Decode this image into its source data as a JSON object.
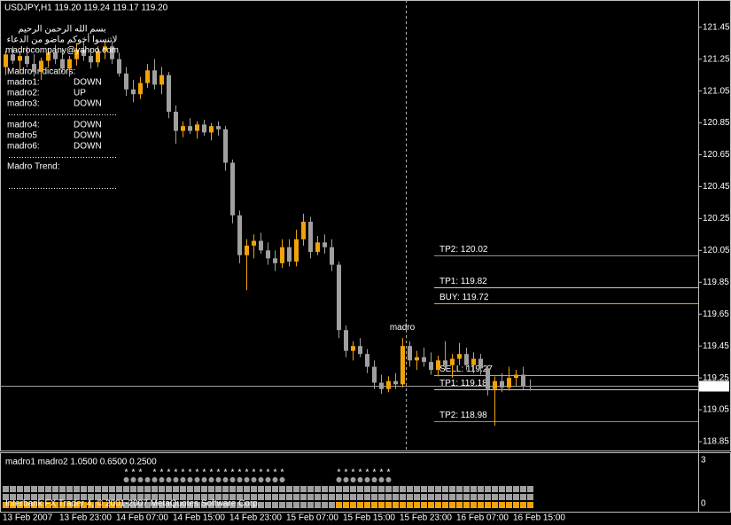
{
  "chart_data": {
    "type": "candlestick",
    "title": "USDJPY,H1  119.20 119.24 119.17 119.20",
    "up_color": "#f0a30a",
    "down_color": "#a0a0a0",
    "categories": [
      "13 Feb 2007",
      null,
      null,
      null,
      null,
      null,
      null,
      null,
      "13 Feb 23:00",
      null,
      null,
      null,
      null,
      null,
      null,
      null,
      "14 Feb 07:00",
      null,
      null,
      null,
      null,
      null,
      null,
      null,
      "14 Feb 15:00",
      null,
      null,
      null,
      null,
      null,
      null,
      null,
      "14 Feb 23:00",
      null,
      null,
      null,
      null,
      null,
      null,
      null,
      "15 Feb 07:00",
      null,
      null,
      null,
      null,
      null,
      null,
      null,
      "15 Feb 15:00",
      null,
      null,
      null,
      null,
      null,
      null,
      null,
      "15 Feb 23:00",
      null,
      null,
      null,
      null,
      null,
      null,
      null,
      "16 Feb 07:00",
      null,
      null,
      null,
      null,
      null,
      null,
      null,
      "16 Feb 15:00",
      null,
      null
    ],
    "open": [
      121.2,
      121.28,
      121.24,
      121.27,
      121.22,
      121.17,
      121.24,
      121.29,
      121.25,
      121.19,
      121.25,
      121.31,
      121.27,
      121.23,
      121.3,
      121.33,
      121.25,
      121.16,
      121.06,
      121.03,
      121.1,
      121.18,
      121.09,
      121.15,
      120.92,
      120.8,
      120.83,
      120.8,
      120.84,
      120.79,
      120.83,
      120.81,
      120.6,
      120.27,
      120.02,
      120.08,
      120.11,
      120.05,
      120.0,
      119.97,
      120.07,
      119.98,
      120.12,
      120.23,
      120.04,
      120.1,
      120.07,
      119.96,
      119.55,
      119.42,
      119.45,
      119.4,
      119.32,
      119.22,
      119.18,
      119.23,
      119.21,
      119.45,
      119.36,
      119.38,
      119.35,
      119.3,
      119.36,
      119.33,
      119.37,
      119.4,
      119.33,
      119.37,
      119.31,
      119.18,
      119.23,
      119.19,
      119.25,
      119.27,
      119.2
    ],
    "high": [
      121.3,
      121.33,
      121.3,
      121.33,
      121.28,
      121.26,
      121.32,
      121.34,
      121.31,
      121.27,
      121.35,
      121.36,
      121.32,
      121.33,
      121.36,
      121.36,
      121.29,
      121.2,
      121.12,
      121.14,
      121.22,
      121.25,
      121.2,
      121.17,
      120.96,
      120.86,
      120.88,
      120.86,
      120.87,
      120.85,
      120.86,
      120.83,
      120.62,
      120.3,
      120.12,
      120.15,
      120.16,
      120.1,
      120.05,
      120.12,
      120.12,
      120.18,
      120.28,
      120.26,
      120.14,
      120.15,
      120.12,
      119.98,
      119.58,
      119.48,
      119.5,
      119.43,
      119.36,
      119.27,
      119.26,
      119.28,
      119.5,
      119.48,
      119.42,
      119.44,
      119.41,
      119.39,
      119.48,
      119.4,
      119.47,
      119.44,
      119.41,
      119.4,
      119.33,
      119.26,
      119.28,
      119.32,
      119.3,
      119.32,
      119.24
    ],
    "low": [
      121.15,
      121.22,
      121.18,
      121.2,
      121.14,
      121.12,
      121.2,
      121.22,
      121.17,
      121.14,
      121.21,
      121.24,
      121.19,
      121.2,
      121.25,
      121.22,
      121.14,
      121.02,
      120.98,
      121.0,
      121.07,
      121.06,
      121.03,
      120.88,
      120.72,
      120.76,
      120.78,
      120.75,
      120.77,
      120.74,
      120.77,
      120.55,
      120.22,
      119.97,
      119.8,
      120.0,
      120.03,
      119.96,
      119.92,
      119.94,
      119.95,
      119.95,
      120.08,
      120.0,
      120.02,
      120.03,
      119.92,
      119.5,
      119.38,
      119.36,
      119.38,
      119.28,
      119.18,
      119.15,
      119.16,
      119.18,
      119.19,
      119.32,
      119.3,
      119.32,
      119.27,
      119.26,
      119.3,
      119.25,
      119.33,
      119.3,
      119.28,
      119.27,
      119.14,
      118.95,
      119.16,
      119.17,
      119.2,
      119.18,
      119.17
    ],
    "close": [
      121.28,
      121.24,
      121.27,
      121.22,
      121.17,
      121.24,
      121.29,
      121.25,
      121.19,
      121.25,
      121.31,
      121.27,
      121.23,
      121.3,
      121.33,
      121.25,
      121.16,
      121.06,
      121.03,
      121.1,
      121.18,
      121.09,
      121.15,
      120.92,
      120.8,
      120.83,
      120.8,
      120.84,
      120.79,
      120.83,
      120.81,
      120.6,
      120.27,
      120.02,
      120.08,
      120.11,
      120.05,
      120.0,
      119.97,
      120.07,
      119.98,
      120.12,
      120.23,
      120.04,
      120.1,
      120.07,
      119.96,
      119.55,
      119.42,
      119.45,
      119.4,
      119.32,
      119.22,
      119.18,
      119.23,
      119.21,
      119.45,
      119.36,
      119.38,
      119.35,
      119.3,
      119.36,
      119.33,
      119.37,
      119.4,
      119.33,
      119.37,
      119.31,
      119.18,
      119.23,
      119.19,
      119.25,
      119.27,
      119.2,
      119.2
    ],
    "ylim": [
      118.8,
      121.61
    ],
    "yticks": [
      121.45,
      121.25,
      121.05,
      120.85,
      120.65,
      120.45,
      120.25,
      120.05,
      119.85,
      119.65,
      119.45,
      119.25,
      119.05,
      118.85
    ],
    "price_line": {
      "value": 119.2,
      "label": "119.20",
      "color": "#a0a0a0"
    },
    "levels": [
      {
        "label": "TP2: 120.02",
        "value": 120.02,
        "color": "#909090"
      },
      {
        "label": "TP1: 119.82",
        "value": 119.82,
        "color": "#c8c8c8"
      },
      {
        "label": "BUY: 119.72",
        "value": 119.72,
        "color": "#f0a30a"
      },
      {
        "label": "SELL: 119.27",
        "value": 119.27,
        "color": "#f0a30a"
      },
      {
        "label": "TP1: 119.18",
        "value": 119.18,
        "color": "#c8c8c8"
      },
      {
        "label": "TP2: 118.98",
        "value": 118.98,
        "color": "#909090"
      }
    ],
    "annotation": {
      "text": "madro",
      "category": "15 Feb 23:00",
      "color": "#f0a30a"
    },
    "info": {
      "lines": [
        "بسم الله الرحمن الرحيم",
        "لاتنسوا أخوكم ماضو من الدعاء",
        "madrocompany@yahoo.com"
      ],
      "heading": "Madro Indicators:",
      "signals": [
        {
          "label": "madro1:",
          "status": "DOWN",
          "color": "#ff2020"
        },
        {
          "label": "madro2:",
          "status": "UP",
          "color": "#20c020"
        },
        {
          "label": "madro3:",
          "status": "DOWN",
          "color": "#ff2020"
        },
        {
          "label": "madro4:",
          "status": "DOWN",
          "color": "#ff2020"
        },
        {
          "label": "madro5",
          "status": "DOWN",
          "color": "#ff2020"
        },
        {
          "label": "madro6:",
          "status": "DOWN",
          "color": "#ff2020"
        }
      ],
      "trend": "Madro Trend:"
    },
    "indicator": {
      "label": "madro1  madro2 1.0500 0.6500 0.2500",
      "ylim": [
        0,
        3
      ],
      "yticks": [
        0,
        3
      ],
      "rows": [
        {
          "marker": "*",
          "color": "#e0e0e0",
          "values": [
            null,
            null,
            null,
            null,
            null,
            null,
            null,
            null,
            null,
            null,
            null,
            null,
            null,
            null,
            null,
            null,
            null,
            1,
            1,
            1,
            null,
            1,
            1,
            1,
            1,
            1,
            1,
            1,
            1,
            1,
            1,
            1,
            1,
            1,
            1,
            1,
            1,
            1,
            1,
            1,
            null,
            null,
            null,
            null,
            null,
            null,
            null,
            1,
            1,
            1,
            1,
            1,
            1,
            1,
            1,
            null,
            null,
            null,
            null,
            null,
            null,
            null,
            null,
            null,
            null,
            null,
            null,
            null,
            null,
            null,
            null,
            null,
            null,
            null,
            null
          ]
        },
        {
          "marker": "dot",
          "color": "#a0a0a0",
          "values": [
            null,
            null,
            null,
            null,
            null,
            null,
            null,
            null,
            null,
            null,
            null,
            null,
            null,
            null,
            null,
            null,
            null,
            1,
            1,
            1,
            1,
            1,
            1,
            1,
            1,
            1,
            1,
            1,
            1,
            1,
            1,
            1,
            1,
            1,
            1,
            1,
            1,
            1,
            1,
            1,
            null,
            null,
            null,
            null,
            null,
            null,
            null,
            1,
            1,
            1,
            1,
            1,
            1,
            1,
            1,
            null,
            null,
            null,
            null,
            null,
            null,
            null,
            null,
            null,
            null,
            null,
            null,
            null,
            null,
            null,
            null,
            null,
            null,
            null,
            null
          ]
        },
        {
          "marker": "square",
          "values": [
            0,
            0,
            0,
            0,
            0,
            0,
            0,
            0,
            0,
            0,
            0,
            0,
            0,
            0,
            0,
            0,
            0,
            0,
            0,
            0,
            0,
            0,
            0,
            0,
            0,
            0,
            0,
            0,
            0,
            0,
            0,
            0,
            0,
            0,
            0,
            0,
            0,
            0,
            0,
            0,
            0,
            0,
            0,
            0,
            0,
            0,
            0,
            0,
            0,
            0,
            0,
            0,
            0,
            0,
            0,
            0,
            0,
            0,
            0,
            0,
            0,
            0,
            0,
            0,
            0,
            0,
            0,
            0,
            0,
            0,
            0,
            0,
            0,
            0,
            0
          ]
        },
        {
          "marker": "square",
          "values": [
            0,
            0,
            0,
            0,
            0,
            0,
            0,
            0,
            0,
            0,
            0,
            0,
            0,
            0,
            0,
            0,
            0,
            0,
            0,
            0,
            0,
            0,
            0,
            0,
            0,
            0,
            0,
            0,
            0,
            0,
            0,
            0,
            0,
            0,
            0,
            0,
            0,
            0,
            0,
            0,
            0,
            0,
            0,
            0,
            0,
            0,
            0,
            0,
            0,
            0,
            0,
            0,
            0,
            0,
            0,
            0,
            0,
            0,
            0,
            0,
            0,
            0,
            0,
            0,
            0,
            0,
            0,
            0,
            0,
            0,
            0,
            0,
            0,
            0,
            0
          ]
        },
        {
          "marker": "square",
          "values": [
            1,
            1,
            1,
            1,
            1,
            1,
            1,
            1,
            1,
            1,
            1,
            1,
            1,
            1,
            1,
            1,
            1,
            0,
            0,
            0,
            0,
            0,
            0,
            0,
            0,
            0,
            0,
            0,
            0,
            0,
            0,
            0,
            0,
            0,
            0,
            0,
            0,
            0,
            0,
            0,
            0,
            0,
            0,
            0,
            0,
            0,
            0,
            1,
            1,
            1,
            1,
            1,
            1,
            1,
            1,
            1,
            1,
            1,
            1,
            1,
            1,
            1,
            1,
            1,
            1,
            1,
            1,
            1,
            1,
            1,
            1,
            1,
            1,
            1,
            1
          ]
        }
      ]
    },
    "footer": "Interbank FX Trader 4, © 2001-2007 MetaQuotes Software Corp."
  }
}
